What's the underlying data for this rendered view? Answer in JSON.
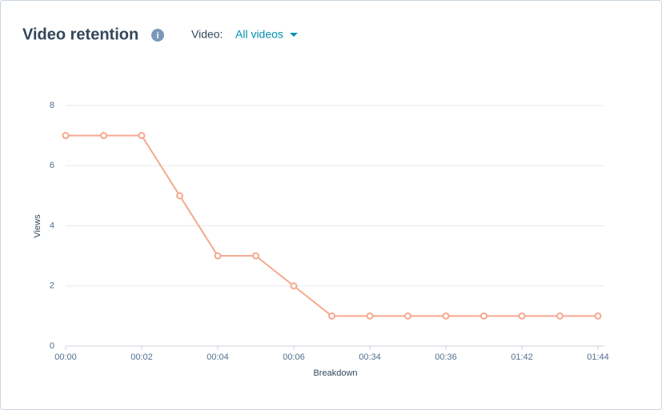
{
  "header": {
    "title": "Video retention",
    "filter_label": "Video:",
    "filter_value": "All videos"
  },
  "chart_data": {
    "type": "line",
    "x_label": "Breakdown",
    "y_label": "Views",
    "categories": [
      "00:00",
      null,
      "00:02",
      null,
      "00:04",
      null,
      "00:06",
      null,
      "00:34",
      null,
      "00:36",
      null,
      "01:42",
      null,
      "01:44"
    ],
    "series": [
      {
        "name": "Views",
        "color": "#f5a88e",
        "values": [
          7,
          7,
          7,
          5,
          3,
          3,
          2,
          1,
          1,
          1,
          1,
          1,
          1,
          1,
          1
        ]
      }
    ],
    "ylim": [
      0,
      8
    ],
    "yticks": [
      0,
      2,
      4,
      6,
      8
    ],
    "grid": true
  }
}
